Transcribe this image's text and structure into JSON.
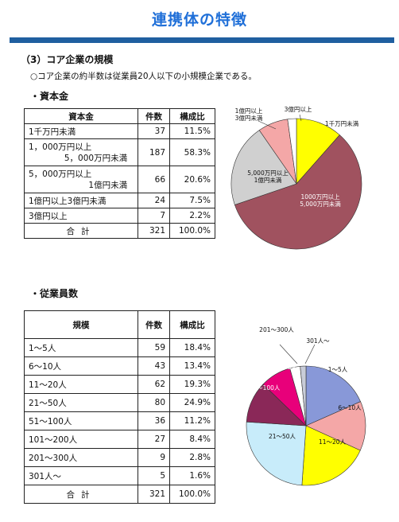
{
  "title": "連携体の特徴",
  "section": "（3）コア企業の規模",
  "summary": "○コア企業の約半数は従業員20人以下の小規模企業である。",
  "capital": {
    "heading": "・資本金",
    "headers": [
      "資本金",
      "件数",
      "構成比"
    ],
    "rows": [
      {
        "label": "1千万円未満",
        "count": "37",
        "pct": "11.5%"
      },
      {
        "label": "1，000万円以上",
        "label2": "5，000万円未満",
        "count": "187",
        "pct": "58.3%"
      },
      {
        "label": "5，000万円以上",
        "label2": "1億円未満",
        "count": "66",
        "pct": "20.6%"
      },
      {
        "label": "1億円以上3億円未満",
        "count": "24",
        "pct": "7.5%"
      },
      {
        "label": "3億円以上",
        "count": "7",
        "pct": "2.2%"
      }
    ],
    "total": {
      "label": "合計",
      "count": "321",
      "pct": "100.0%"
    }
  },
  "employees": {
    "heading": "・従業員数",
    "headers": [
      "規模",
      "件数",
      "構成比"
    ],
    "rows": [
      {
        "label": "1～5人",
        "count": "59",
        "pct": "18.4%"
      },
      {
        "label": "6～10人",
        "count": "43",
        "pct": "13.4%"
      },
      {
        "label": "11～20人",
        "count": "62",
        "pct": "19.3%"
      },
      {
        "label": "21～50人",
        "count": "80",
        "pct": "24.9%"
      },
      {
        "label": "51～100人",
        "count": "36",
        "pct": "11.2%"
      },
      {
        "label": "101～200人",
        "count": "27",
        "pct": "8.4%"
      },
      {
        "label": "201～300人",
        "count": "9",
        "pct": "2.8%"
      },
      {
        "label": "301人～",
        "count": "5",
        "pct": "1.6%"
      }
    ],
    "total": {
      "label": "合計",
      "count": "321",
      "pct": "100.0%"
    }
  },
  "chart_data": [
    {
      "type": "pie",
      "categories": [
        "1千万円未満",
        "1000万円以上\n5,000万円未満",
        "5,000万円以上\n1億円未満",
        "1億円以上\n3億円未満",
        "3億円以上"
      ],
      "values": [
        37,
        187,
        66,
        24,
        7
      ],
      "colors": [
        "#ffff00",
        "#a0525f",
        "#d0d0d0",
        "#f4a7a7",
        "#ffffff"
      ]
    },
    {
      "type": "pie",
      "categories": [
        "1～5人",
        "6～10人",
        "11～20人",
        "21～50人",
        "51～100人",
        "101～200人",
        "201～300人",
        "301人～"
      ],
      "values": [
        59,
        43,
        62,
        80,
        36,
        27,
        9,
        5
      ],
      "colors": [
        "#8898d8",
        "#f4a7a7",
        "#ffff00",
        "#c8ecfa",
        "#8a2858",
        "#e8007a",
        "#ffffff",
        "#c8ccd8"
      ]
    }
  ]
}
